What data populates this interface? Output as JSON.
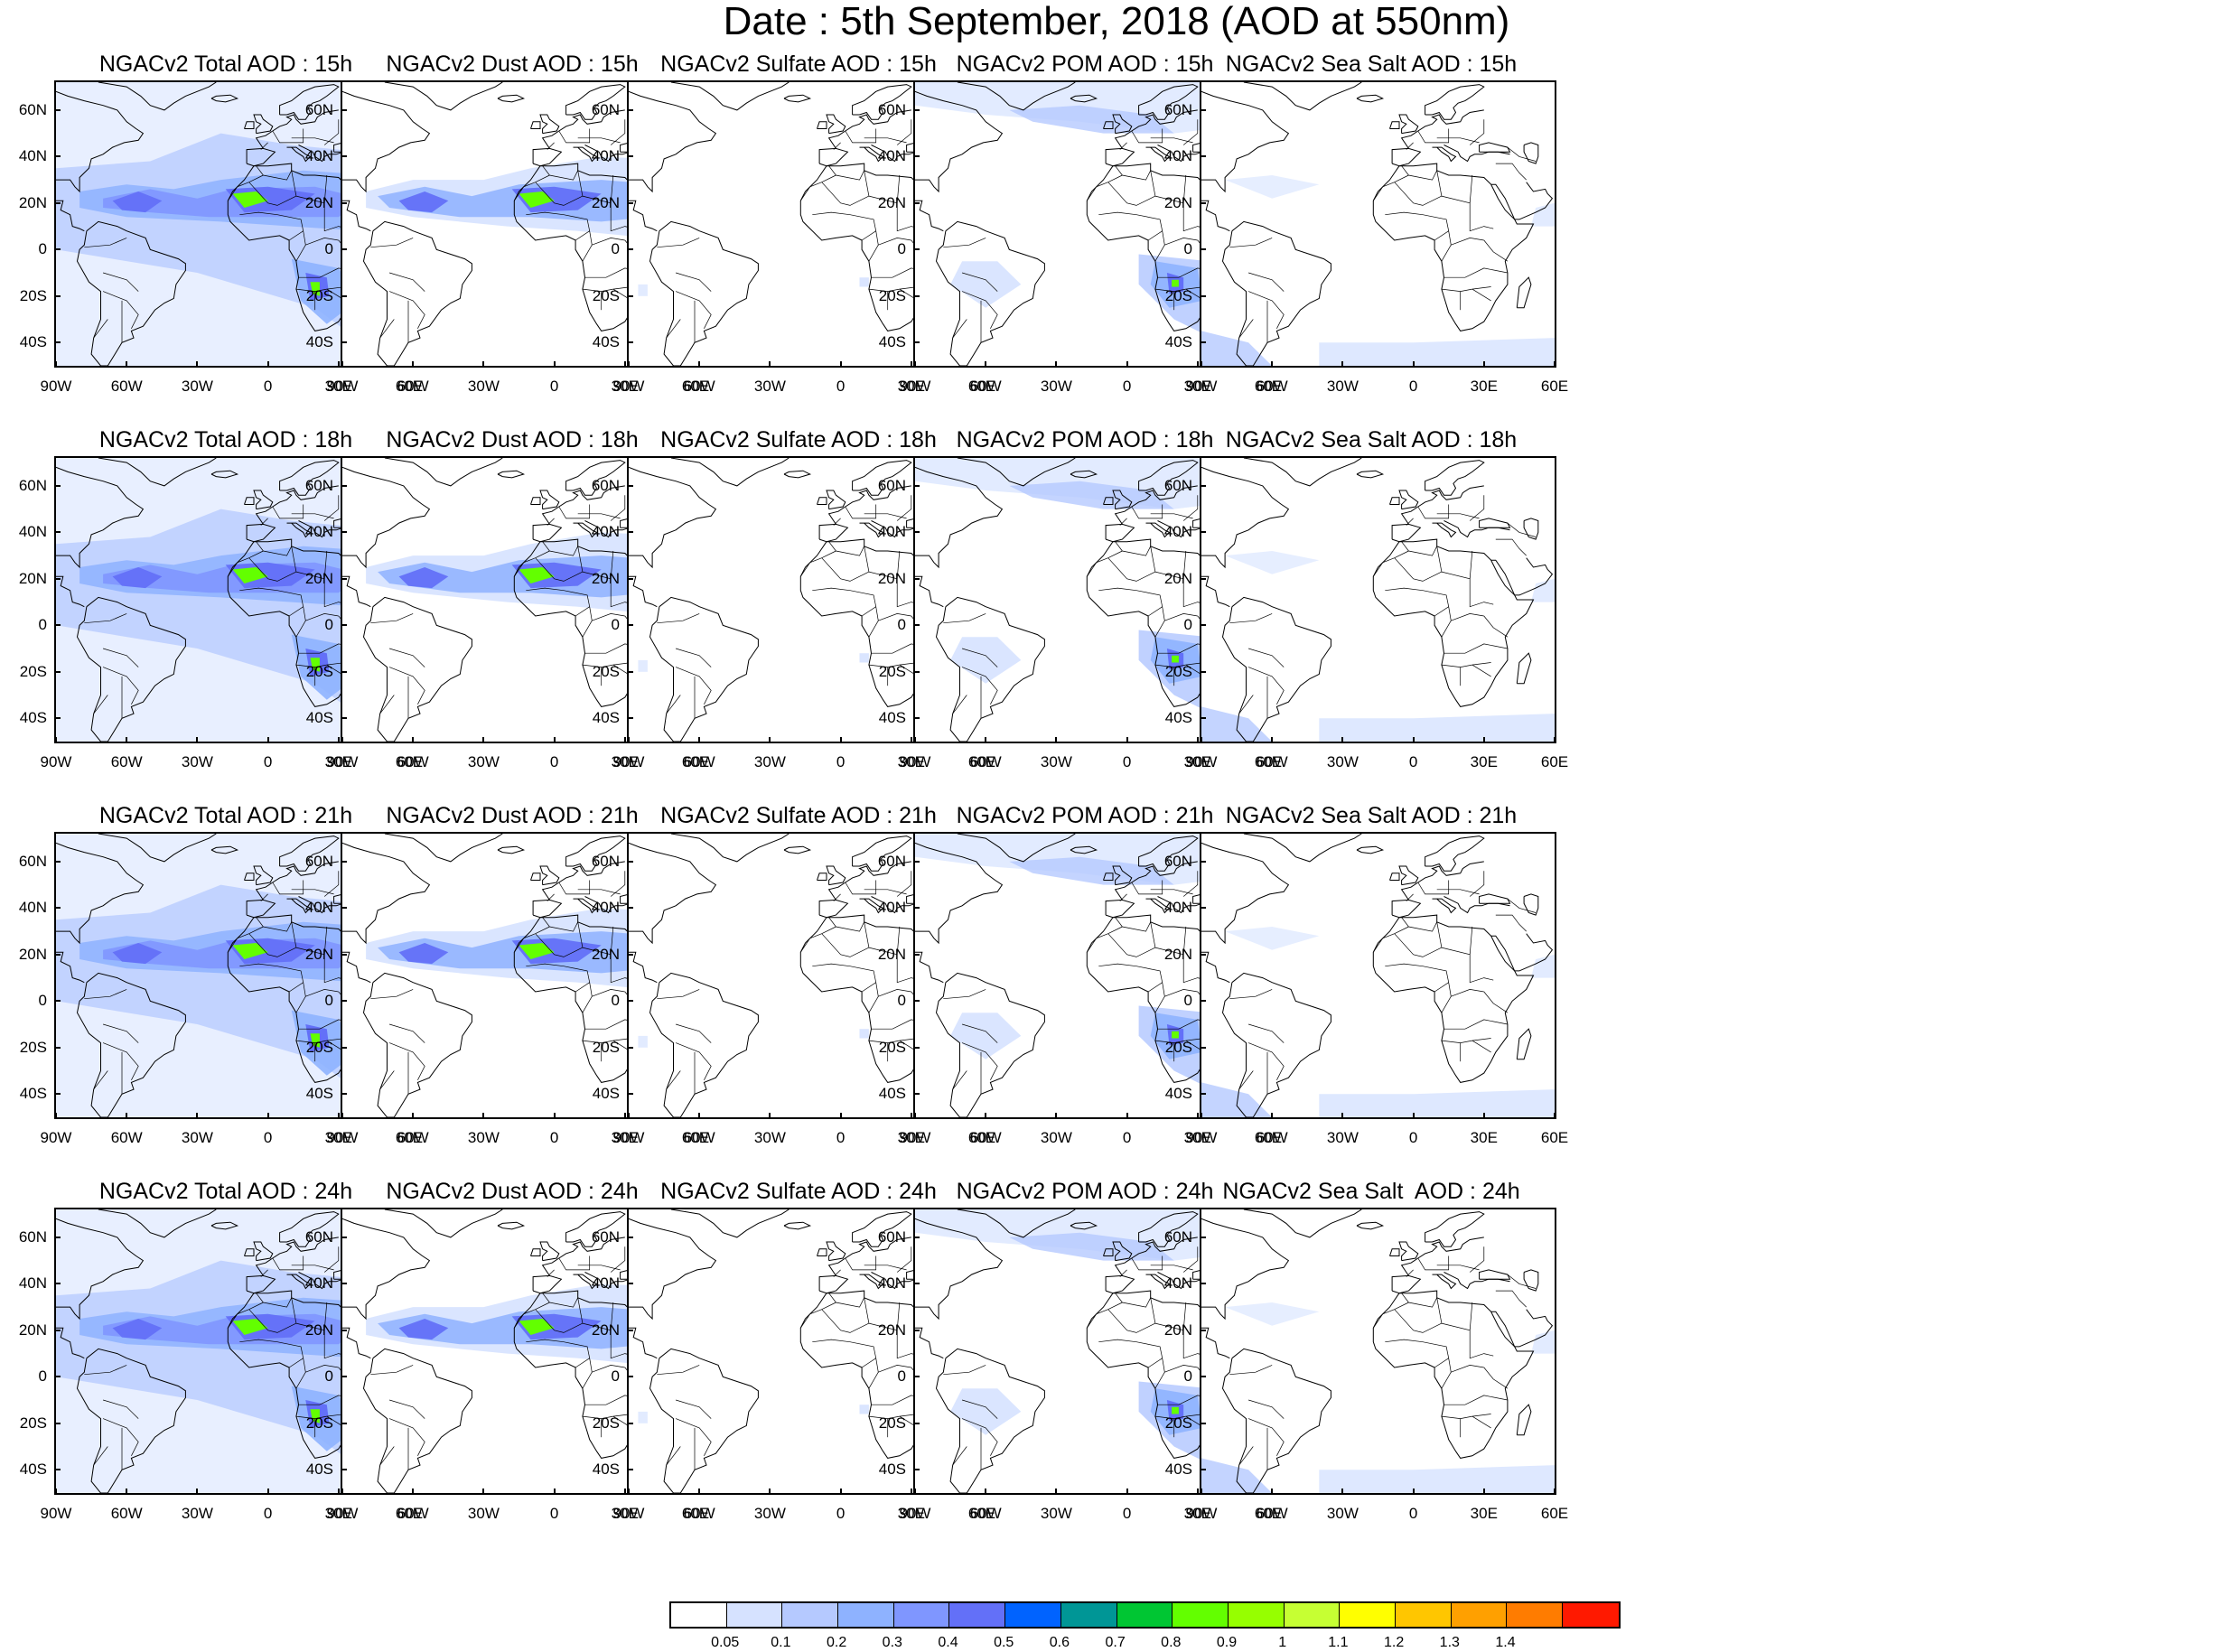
{
  "title": "Date : 5th September, 2018 (AOD at 550nm)",
  "axes": {
    "lat_labels": [
      "60N",
      "40N",
      "20N",
      "0",
      "20S",
      "40S"
    ],
    "lon_labels": [
      "90W",
      "60W",
      "30W",
      "0",
      "30E",
      "60E"
    ]
  },
  "colorbar": {
    "colors": [
      "#ffffff",
      "#d6e2ff",
      "#b5c9ff",
      "#8eb2ff",
      "#7f96ff",
      "#6370f8",
      "#0063ff",
      "#009696",
      "#00c633",
      "#63ff00",
      "#96ff00",
      "#c6ff33",
      "#ffff00",
      "#ffc600",
      "#ffa000",
      "#ff7c00",
      "#ff1900"
    ],
    "labels": [
      "0.05",
      "0.1",
      "0.2",
      "0.3",
      "0.4",
      "0.5",
      "0.6",
      "0.7",
      "0.8",
      "0.9",
      "1",
      "1.1",
      "1.2",
      "1.3",
      "1.4"
    ]
  },
  "panels": [
    {
      "title": "NGACv2 Total AOD : 15h",
      "species": "total"
    },
    {
      "title": "NGACv2 Dust AOD : 15h",
      "species": "dust"
    },
    {
      "title": "NGACv2 Sulfate AOD : 15h",
      "species": "sulfate"
    },
    {
      "title": "NGACv2 POM AOD : 15h",
      "species": "pom"
    },
    {
      "title": "NGACv2 Sea Salt AOD : 15h",
      "species": "seasalt"
    },
    {
      "title": "NGACv2 Total AOD : 18h",
      "species": "total"
    },
    {
      "title": "NGACv2 Dust AOD : 18h",
      "species": "dust"
    },
    {
      "title": "NGACv2 Sulfate AOD : 18h",
      "species": "sulfate"
    },
    {
      "title": "NGACv2 POM AOD : 18h",
      "species": "pom"
    },
    {
      "title": "NGACv2 Sea Salt AOD : 18h",
      "species": "seasalt"
    },
    {
      "title": "NGACv2 Total AOD : 21h",
      "species": "total"
    },
    {
      "title": "NGACv2 Dust AOD : 21h",
      "species": "dust"
    },
    {
      "title": "NGACv2 Sulfate AOD : 21h",
      "species": "sulfate"
    },
    {
      "title": "NGACv2 POM AOD : 21h",
      "species": "pom"
    },
    {
      "title": "NGACv2 Sea Salt AOD : 21h",
      "species": "seasalt"
    },
    {
      "title": "NGACv2 Total AOD : 24h",
      "species": "total"
    },
    {
      "title": "NGACv2 Dust AOD : 24h",
      "species": "dust"
    },
    {
      "title": "NGACv2 Sulfate AOD : 24h",
      "species": "sulfate"
    },
    {
      "title": "NGACv2 POM AOD : 24h",
      "species": "pom"
    },
    {
      "title": "NGACv2 Sea Salt  AOD : 24h",
      "species": "seasalt"
    }
  ]
}
